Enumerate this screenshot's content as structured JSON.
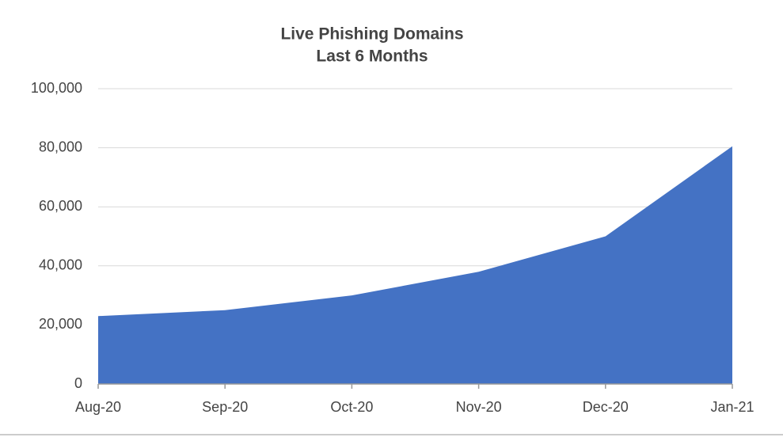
{
  "chart_data": {
    "type": "area",
    "title": "Live Phishing Domains",
    "subtitle": "Last 6 Months",
    "categories": [
      "Aug-20",
      "Sep-20",
      "Oct-20",
      "Nov-20",
      "Dec-20",
      "Jan-21"
    ],
    "values": [
      23000,
      25000,
      30000,
      38000,
      50000,
      80500
    ],
    "color": "#4472c4",
    "ylim": [
      0,
      100000
    ],
    "yticks": [
      0,
      {
        "value": 20000,
        "label": "20,000"
      },
      {
        "value": 40000,
        "label": "40,000"
      },
      {
        "value": 60000,
        "label": "60,000"
      },
      {
        "value": 80000,
        "label": "80,000"
      },
      {
        "value": 100000,
        "label": "100,000"
      }
    ],
    "grid": true
  }
}
